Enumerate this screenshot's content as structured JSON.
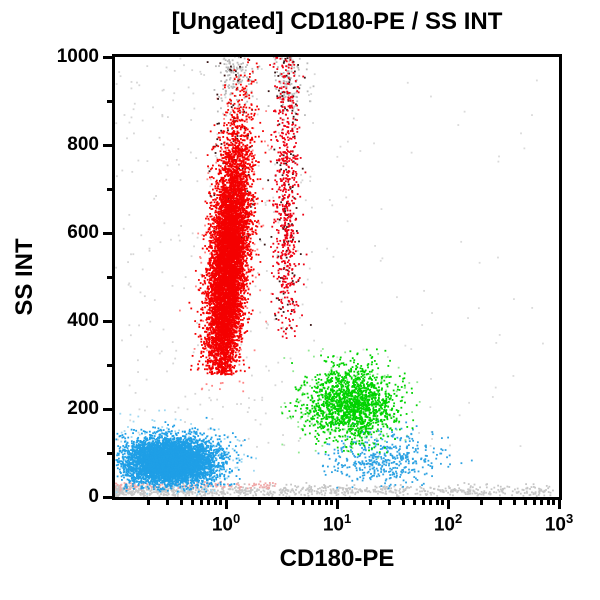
{
  "chart_data": {
    "type": "scatter",
    "subtype": "flow-cytometry-dot-plot",
    "title": "[Ungated] CD180-PE / SS INT",
    "xlabel": "CD180-PE",
    "ylabel": "SS INT",
    "x_scale": "log10",
    "x_range": [
      0.1,
      1000
    ],
    "x_tick_base": "10",
    "x_tick_exponents": [
      0,
      1,
      2,
      3
    ],
    "x_minor_decades": [
      -1,
      0,
      1,
      2
    ],
    "y_range": [
      0,
      1000
    ],
    "y_major_ticks": [
      0,
      200,
      400,
      600,
      800,
      1000
    ],
    "y_minor_ticks": [
      100,
      300,
      500,
      700,
      900
    ],
    "grid": false,
    "legend": "none",
    "colors": {
      "granulocytes": "#f40000",
      "lymphocytes": "#1f9fe6",
      "monocytes": "#00d300",
      "debris": "#c6c6c6",
      "axis": "#000000"
    },
    "populations": [
      {
        "name": "background-left",
        "color": "#d6d6d6",
        "n": 280,
        "x": {
          "dist": "uniform",
          "min": -1,
          "max": 0.8
        },
        "y": {
          "dist": "uniform",
          "min": 110,
          "max": 1000
        }
      },
      {
        "name": "background-right",
        "color": "#dadada",
        "n": 70,
        "x": {
          "dist": "uniform",
          "min": 0.8,
          "max": 2.9
        },
        "y": {
          "dist": "uniform",
          "min": 110,
          "max": 1000
        }
      },
      {
        "name": "debris-band-bottom",
        "color": "#c6c6c6",
        "n": 900,
        "x": {
          "dist": "uniform",
          "min": -1,
          "max": 2.95,
          "pow": 1.6
        },
        "y": {
          "dist": "gauss",
          "mu": 14,
          "sigma": 7,
          "min": 1,
          "max": 34
        }
      },
      {
        "name": "red-fringe-bottom",
        "color": "#f0a8a8",
        "n": 140,
        "x": {
          "dist": "uniform",
          "min": -1,
          "max": 0.45
        },
        "y": {
          "dist": "gauss",
          "mu": 27,
          "sigma": 5,
          "min": 15,
          "max": 42
        }
      },
      {
        "name": "lymphocyte-fringe",
        "color": "#9fd8f2",
        "n": 260,
        "x": {
          "dist": "gauss",
          "mu": -0.45,
          "sigma": 0.33,
          "min": -0.99,
          "max": 0.85
        },
        "y": {
          "dist": "gauss",
          "mu": 80,
          "sigma": 45,
          "min": 5,
          "max": 215
        }
      },
      {
        "name": "monocyte-fringe",
        "color": "#90e890",
        "n": 170,
        "x": {
          "dist": "gauss",
          "mu": 1.1,
          "sigma": 0.3,
          "min": 0.35,
          "max": 2.1
        },
        "y": {
          "dist": "gauss",
          "mu": 210,
          "sigma": 65,
          "min": 60,
          "max": 360
        }
      },
      {
        "name": "granulocyte-fringe",
        "color": "#ff8585",
        "n": 260,
        "x": {
          "dist": "gauss",
          "mu": 0.02,
          "sigma": 0.13,
          "min": -0.45,
          "max": 0.62,
          "slope": 0.00028,
          "yref": 525
        },
        "y": {
          "dist": "gauss",
          "mu": 525,
          "sigma": 195,
          "min": 235,
          "max": 1005
        }
      },
      {
        "name": "saturated-gray-top-main",
        "color": "#b9b9b9",
        "n": 130,
        "x": {
          "dist": "gauss",
          "mu": 0.08,
          "sigma": 0.08,
          "min": -0.2,
          "max": 0.4
        },
        "y": {
          "dist": "gauss",
          "mu": 960,
          "sigma": 45,
          "min": 850,
          "max": 1005
        }
      },
      {
        "name": "saturated-gray-top-streak",
        "color": "#b9b9b9",
        "n": 110,
        "x": {
          "dist": "gauss",
          "mu": 0.56,
          "sigma": 0.07,
          "min": 0.3,
          "max": 0.85
        },
        "y": {
          "dist": "gauss",
          "mu": 950,
          "sigma": 55,
          "min": 830,
          "max": 1005
        }
      },
      {
        "name": "dark-specks-streak",
        "color": "#381414",
        "n": 120,
        "x": {
          "dist": "gauss",
          "mu": 0.55,
          "sigma": 0.07,
          "min": 0.3,
          "max": 0.85
        },
        "y": {
          "dist": "uniform",
          "min": 380,
          "max": 1000
        }
      },
      {
        "name": "dark-specks-main",
        "color": "#381414",
        "n": 90,
        "x": {
          "dist": "gauss",
          "mu": 0.05,
          "sigma": 0.1,
          "min": -0.3,
          "max": 0.45
        },
        "y": {
          "dist": "uniform",
          "min": 520,
          "max": 1000
        }
      },
      {
        "name": "granulocytes-secondary-streak",
        "color": "#ee0012",
        "n": 600,
        "x": {
          "dist": "gauss",
          "mu": 0.545,
          "sigma": 0.058,
          "min": 0.28,
          "max": 0.85
        },
        "y": {
          "dist": "gauss",
          "mu": 690,
          "sigma": 205,
          "min": 360,
          "max": 1005
        }
      },
      {
        "name": "blue-right-sparse",
        "color": "#2da2e2",
        "n": 440,
        "x": {
          "dist": "gauss",
          "mu": 1.42,
          "sigma": 0.26,
          "min": 0.72,
          "max": 2.3
        },
        "y": {
          "dist": "gauss",
          "mu": 86,
          "sigma": 30,
          "min": 12,
          "max": 175
        }
      },
      {
        "name": "monocytes",
        "color": "#00d300",
        "n": 1550,
        "x": {
          "dist": "gauss",
          "mu": 1.13,
          "sigma": 0.2,
          "min": 0.5,
          "max": 1.95
        },
        "y": {
          "dist": "gauss",
          "mu": 212,
          "sigma": 42,
          "min": 95,
          "max": 340
        }
      },
      {
        "name": "lymphocytes",
        "color": "#1f9fe6",
        "n": 5200,
        "x": {
          "dist": "gauss",
          "mu": -0.5,
          "sigma": 0.21,
          "min": -0.99,
          "max": 0.48
        },
        "y": {
          "dist": "gauss",
          "mu": 81,
          "sigma": 27,
          "min": 12,
          "max": 182
        }
      },
      {
        "name": "granulocytes-main",
        "color": "#f40000",
        "n": 7200,
        "x": {
          "dist": "gauss",
          "mu": 0.02,
          "sigma": 0.082,
          "min": -0.42,
          "max": 0.62,
          "slope": 0.00028,
          "yref": 525
        },
        "y": {
          "dist": "gauss",
          "mu": 525,
          "sigma": 152,
          "min": 278,
          "max": 1008
        }
      }
    ]
  }
}
